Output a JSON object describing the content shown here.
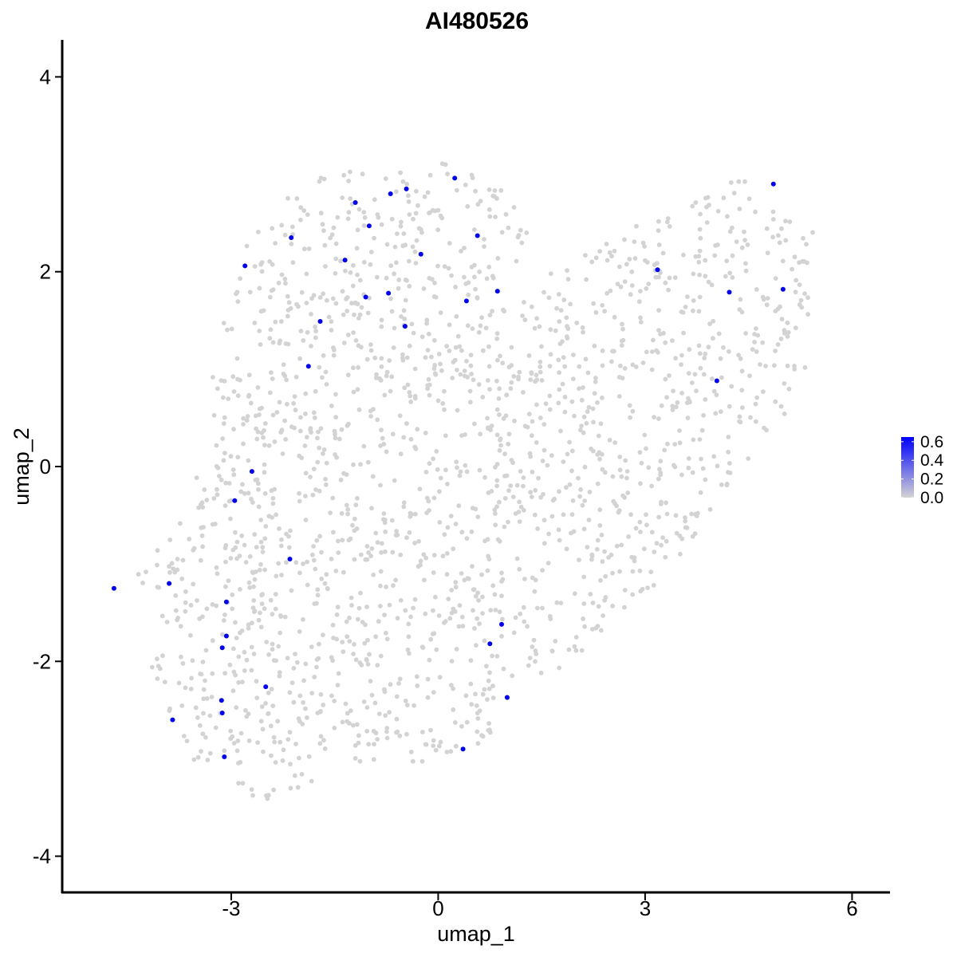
{
  "chart_data": {
    "type": "scatter",
    "title": "AI480526",
    "xlabel": "umap_1",
    "ylabel": "umap_2",
    "xlim": [
      -5.45,
      6.55
    ],
    "ylim": [
      -4.38,
      4.38
    ],
    "xticks": [
      -3,
      0,
      3,
      6
    ],
    "yticks": [
      -4,
      -2,
      0,
      2,
      4
    ],
    "xtick_labels": [
      "-3",
      "0",
      "3",
      "6"
    ],
    "ytick_labels": [
      "-4",
      "-2",
      "0",
      "2",
      "4"
    ],
    "grid": false,
    "legend": {
      "position": "right",
      "type": "colorbar",
      "labels": [
        "0.6",
        "0.4",
        "0.2",
        "0.0"
      ],
      "values": [
        0.6,
        0.4,
        0.2,
        0.0
      ],
      "range": [
        0.0,
        0.65
      ],
      "low_color": "#d3d3d3",
      "high_color": "#0000ff"
    },
    "colors": {
      "zero": "#d3d3d3",
      "expressing": "#0000ff"
    },
    "background_point_count": 1900,
    "expressing_points": [
      {
        "x": -4.7,
        "y": -1.25
      },
      {
        "x": -3.9,
        "y": -1.2
      },
      {
        "x": -3.85,
        "y": -2.6
      },
      {
        "x": -3.1,
        "y": -2.98
      },
      {
        "x": -3.13,
        "y": -2.53
      },
      {
        "x": -3.14,
        "y": -2.4
      },
      {
        "x": -3.13,
        "y": -1.86
      },
      {
        "x": -3.07,
        "y": -1.74
      },
      {
        "x": -3.07,
        "y": -1.39
      },
      {
        "x": -2.5,
        "y": -2.26
      },
      {
        "x": -2.15,
        "y": -0.95
      },
      {
        "x": -2.95,
        "y": -0.35
      },
      {
        "x": -2.7,
        "y": -0.05
      },
      {
        "x": -1.88,
        "y": 1.03
      },
      {
        "x": -1.71,
        "y": 1.49
      },
      {
        "x": -2.8,
        "y": 2.06
      },
      {
        "x": -2.13,
        "y": 2.35
      },
      {
        "x": -1.35,
        "y": 2.12
      },
      {
        "x": -1.05,
        "y": 1.74
      },
      {
        "x": -0.72,
        "y": 1.78
      },
      {
        "x": -0.48,
        "y": 1.44
      },
      {
        "x": -0.25,
        "y": 2.18
      },
      {
        "x": -1.2,
        "y": 2.71
      },
      {
        "x": -1.0,
        "y": 2.47
      },
      {
        "x": -0.69,
        "y": 2.8
      },
      {
        "x": -0.46,
        "y": 2.85
      },
      {
        "x": 0.24,
        "y": 2.96
      },
      {
        "x": 0.57,
        "y": 2.37
      },
      {
        "x": 0.41,
        "y": 1.7
      },
      {
        "x": 0.86,
        "y": 1.8
      },
      {
        "x": 0.92,
        "y": -1.62
      },
      {
        "x": 0.75,
        "y": -1.82
      },
      {
        "x": 1.0,
        "y": -2.37
      },
      {
        "x": 0.36,
        "y": -2.9
      },
      {
        "x": 3.18,
        "y": 2.02
      },
      {
        "x": 4.22,
        "y": 1.79
      },
      {
        "x": 4.04,
        "y": 0.88
      },
      {
        "x": 4.86,
        "y": 2.9
      },
      {
        "x": 5.0,
        "y": 1.82
      }
    ]
  }
}
